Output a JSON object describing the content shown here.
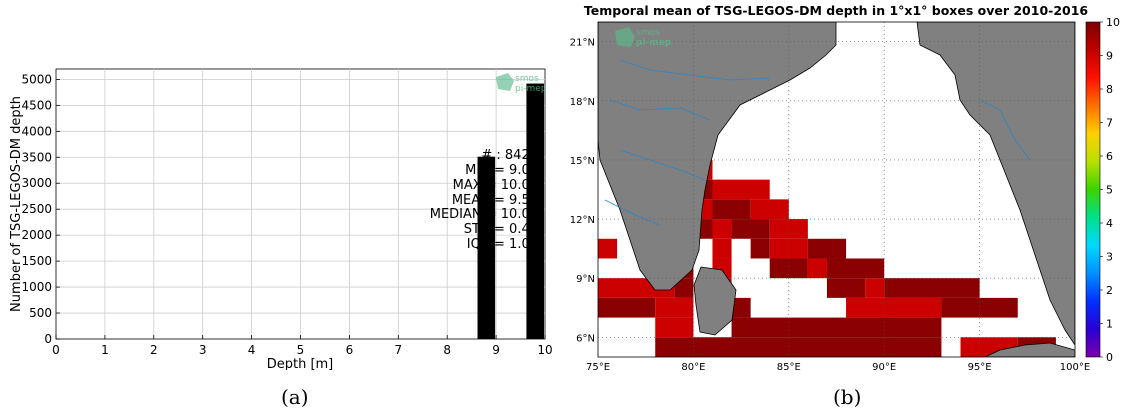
{
  "colors": {
    "bar": "#000000",
    "land": "#808080",
    "river": "#2e86c1",
    "logo_green": "#5cb88a",
    "box_dark": "#8b0000",
    "box_mid": "#cc0000"
  },
  "panel_a": {
    "caption": "(a)",
    "stats": {
      "count": "# : 8428",
      "min": "MIN = 9.00",
      "max": "MAX = 10.00",
      "mean": "MEAN = 9.58",
      "median": "MEDIAN = 10.00",
      "std": "STD = 0.49",
      "iqr": "IQR = 1.00"
    },
    "logo": {
      "line1": "smos",
      "line2": "pi-mep"
    }
  },
  "panel_b": {
    "caption": "(b)",
    "logo": {
      "line1": "smos",
      "line2": "pi-mep"
    },
    "colorbar": {
      "ticks": [
        "0",
        "1",
        "2",
        "3",
        "4",
        "5",
        "6",
        "7",
        "8",
        "9",
        "10"
      ]
    },
    "lat_labels": [
      "6°N",
      "9°N",
      "12°N",
      "15°N",
      "18°N",
      "21°N"
    ],
    "lon_labels": [
      "75°E",
      "80°E",
      "85°E",
      "90°E",
      "95°E",
      "100°E"
    ]
  },
  "chart_data": [
    {
      "type": "bar",
      "title": "",
      "xlabel": "Depth [m]",
      "ylabel": "Number of TSG-LEGOS-DM depth",
      "xlim": [
        0,
        10
      ],
      "ylim": [
        0,
        5200
      ],
      "xticks": [
        "0",
        "1",
        "2",
        "3",
        "4",
        "5",
        "6",
        "7",
        "8",
        "9",
        "10"
      ],
      "yticks": [
        "0",
        "500",
        "1000",
        "1500",
        "2000",
        "2500",
        "3000",
        "3500",
        "4000",
        "4500",
        "5000"
      ],
      "bins": [
        {
          "center": 8.8,
          "value": 3510
        },
        {
          "center": 9.8,
          "value": 4920
        }
      ],
      "grid": true
    },
    {
      "type": "heatmap",
      "title": "Temporal mean of TSG-LEGOS-DM depth in 1°x1° boxes over 2010-2016",
      "xlim": [
        75,
        100
      ],
      "ylim": [
        5,
        22
      ],
      "colorbar_range": [
        0,
        10
      ],
      "cells_by_latitude": [
        {
          "lat": 5,
          "lon_ranges": [
            [
              78,
              93
            ],
            [
              94,
              97
            ],
            [
              97,
              99
            ]
          ]
        },
        {
          "lat": 6,
          "lon_ranges": [
            [
              78,
              80
            ],
            [
              82,
              93
            ]
          ]
        },
        {
          "lat": 7,
          "lon_ranges": [
            [
              75,
              78
            ],
            [
              78,
              80
            ],
            [
              82,
              83
            ],
            [
              88,
              93
            ],
            [
              93,
              97
            ]
          ]
        },
        {
          "lat": 8,
          "lon_ranges": [
            [
              75,
              79
            ],
            [
              79,
              80
            ],
            [
              81,
              82
            ],
            [
              87,
              89
            ],
            [
              89,
              90
            ],
            [
              90,
              95
            ]
          ]
        },
        {
          "lat": 9,
          "lon_ranges": [
            [
              79,
              80
            ],
            [
              81,
              82
            ],
            [
              84,
              86
            ],
            [
              86,
              87
            ],
            [
              87,
              90
            ]
          ]
        },
        {
          "lat": 10,
          "lon_ranges": [
            [
              74,
              76
            ],
            [
              79,
              80
            ],
            [
              81,
              82
            ],
            [
              83,
              84
            ],
            [
              84,
              86
            ],
            [
              86,
              88
            ]
          ]
        },
        {
          "lat": 11,
          "lon_ranges": [
            [
              80,
              81
            ],
            [
              81,
              82
            ],
            [
              82,
              84
            ],
            [
              84,
              86
            ]
          ]
        },
        {
          "lat": 12,
          "lon_ranges": [
            [
              80,
              81
            ],
            [
              81,
              83
            ],
            [
              83,
              85
            ]
          ]
        },
        {
          "lat": 13,
          "lon_ranges": [
            [
              80,
              81
            ],
            [
              81,
              84
            ]
          ]
        },
        {
          "lat": 14,
          "lon_ranges": [
            [
              80,
              81
            ]
          ]
        }
      ]
    }
  ]
}
